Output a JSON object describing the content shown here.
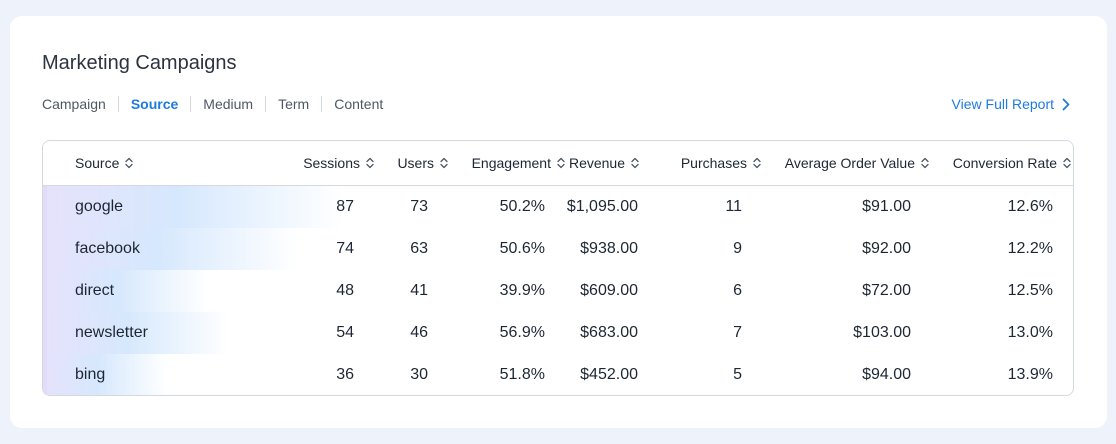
{
  "title": "Marketing Campaigns",
  "tabs": [
    {
      "label": "Campaign",
      "active": false
    },
    {
      "label": "Source",
      "active": true
    },
    {
      "label": "Medium",
      "active": false
    },
    {
      "label": "Term",
      "active": false
    },
    {
      "label": "Content",
      "active": false
    }
  ],
  "full_report_label": "View Full Report",
  "colors": {
    "accent": "#1f7ae0",
    "row_bar_start": "#e6e2fb",
    "row_bar_end": "#d6e8fd"
  },
  "table": {
    "columns": [
      "Source",
      "Sessions",
      "Users",
      "Engagement",
      "Revenue",
      "Purchases",
      "Average Order Value",
      "Conversion Rate"
    ],
    "rows": [
      {
        "source": "google",
        "sessions": "87",
        "users": "73",
        "engagement": "50.2%",
        "revenue": "$1,095.00",
        "purchases": "11",
        "aov": "$91.00",
        "conversion": "12.6%",
        "sessions_share": 1.0
      },
      {
        "source": "facebook",
        "sessions": "74",
        "users": "63",
        "engagement": "50.6%",
        "revenue": "$938.00",
        "purchases": "9",
        "aov": "$92.00",
        "conversion": "12.2%",
        "sessions_share": 0.85
      },
      {
        "source": "direct",
        "sessions": "48",
        "users": "41",
        "engagement": "39.9%",
        "revenue": "$609.00",
        "purchases": "6",
        "aov": "$72.00",
        "conversion": "12.5%",
        "sessions_share": 0.55
      },
      {
        "source": "newsletter",
        "sessions": "54",
        "users": "46",
        "engagement": "56.9%",
        "revenue": "$683.00",
        "purchases": "7",
        "aov": "$103.00",
        "conversion": "13.0%",
        "sessions_share": 0.62
      },
      {
        "source": "bing",
        "sessions": "36",
        "users": "30",
        "engagement": "51.8%",
        "revenue": "$452.00",
        "purchases": "5",
        "aov": "$94.00",
        "conversion": "13.9%",
        "sessions_share": 0.41
      }
    ]
  }
}
